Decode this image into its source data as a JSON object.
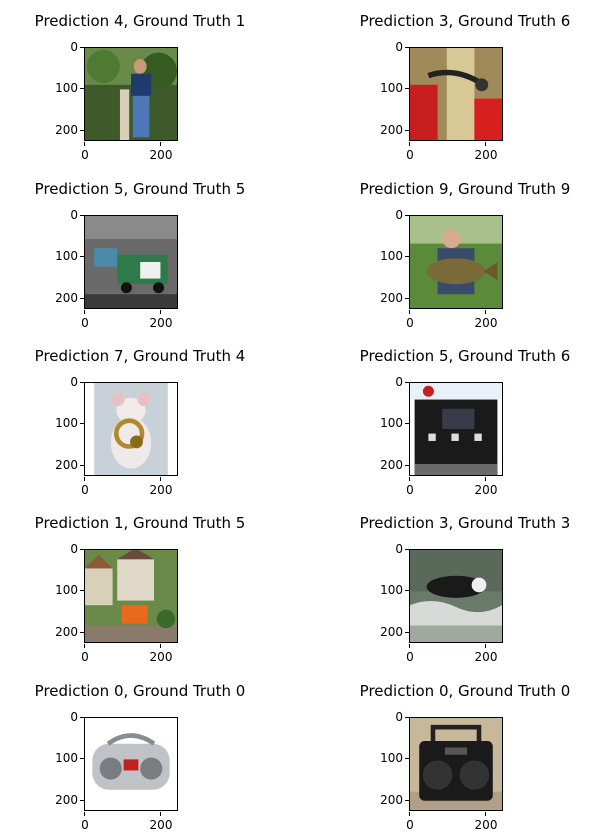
{
  "panels": [
    {
      "title": "Prediction 4, Ground Truth 1",
      "scene": "man-post",
      "yticks": [
        "0",
        "100",
        "200"
      ],
      "xticks": [
        "0",
        "200"
      ]
    },
    {
      "title": "Prediction 3, Ground Truth 6",
      "scene": "pump-red",
      "yticks": [
        "0",
        "100",
        "200"
      ],
      "xticks": [
        "0",
        "200"
      ]
    },
    {
      "title": "Prediction 5, Ground Truth 5",
      "scene": "garbage-truck",
      "yticks": [
        "0",
        "100",
        "200"
      ],
      "xticks": [
        "0",
        "200"
      ]
    },
    {
      "title": "Prediction 9, Ground Truth 9",
      "scene": "fish-man",
      "yticks": [
        "0",
        "100",
        "200"
      ],
      "xticks": [
        "0",
        "200"
      ]
    },
    {
      "title": "Prediction 7, Ground Truth 4",
      "scene": "mouse-horn",
      "yticks": [
        "0",
        "100",
        "200"
      ],
      "xticks": [
        "0",
        "200"
      ]
    },
    {
      "title": "Prediction 5, Ground Truth 6",
      "scene": "gas-pump",
      "yticks": [
        "0",
        "100",
        "200"
      ],
      "xticks": [
        "0",
        "200"
      ]
    },
    {
      "title": "Prediction 1, Ground Truth 5",
      "scene": "toy-village",
      "yticks": [
        "0",
        "100",
        "200"
      ],
      "xticks": [
        "0",
        "200"
      ]
    },
    {
      "title": "Prediction 3, Ground Truth 3",
      "scene": "dog-water",
      "yticks": [
        "0",
        "100",
        "200"
      ],
      "xticks": [
        "0",
        "200"
      ]
    },
    {
      "title": "Prediction 0, Ground Truth 0",
      "scene": "boombox-silver",
      "yticks": [
        "0",
        "100",
        "200"
      ],
      "xticks": [
        "0",
        "200"
      ]
    },
    {
      "title": "Prediction 0, Ground Truth 0",
      "scene": "boombox-black",
      "yticks": [
        "0",
        "100",
        "200"
      ],
      "xticks": [
        "0",
        "200"
      ]
    }
  ]
}
